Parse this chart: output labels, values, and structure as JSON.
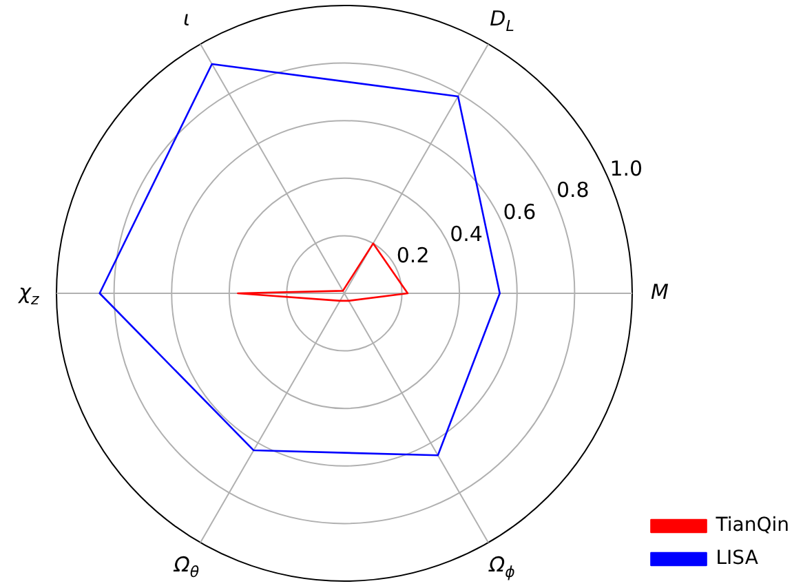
{
  "chart_data": {
    "type": "radar",
    "categories": [
      "D$_{L}$",
      "M",
      "Ω$_{ϕ}$",
      "Ω$_{θ}$",
      "χ$_{z}$",
      "ι"
    ],
    "series": [
      {
        "name": "TianQin",
        "color": "#ff0000",
        "values": [
          0.2,
          0.22,
          0.03,
          0.03,
          0.37,
          0.01
        ]
      },
      {
        "name": "LISA",
        "color": "#0000ff",
        "values": [
          0.79,
          0.54,
          0.65,
          0.63,
          0.85,
          0.92
        ]
      }
    ],
    "ylim": [
      0,
      1
    ],
    "yticks": [
      0.2,
      0.4,
      0.6,
      0.8,
      {
        "value": 1,
        "label": "1.0"
      }
    ],
    "grid": true,
    "legend": "bottom right",
    "marker": "none"
  }
}
